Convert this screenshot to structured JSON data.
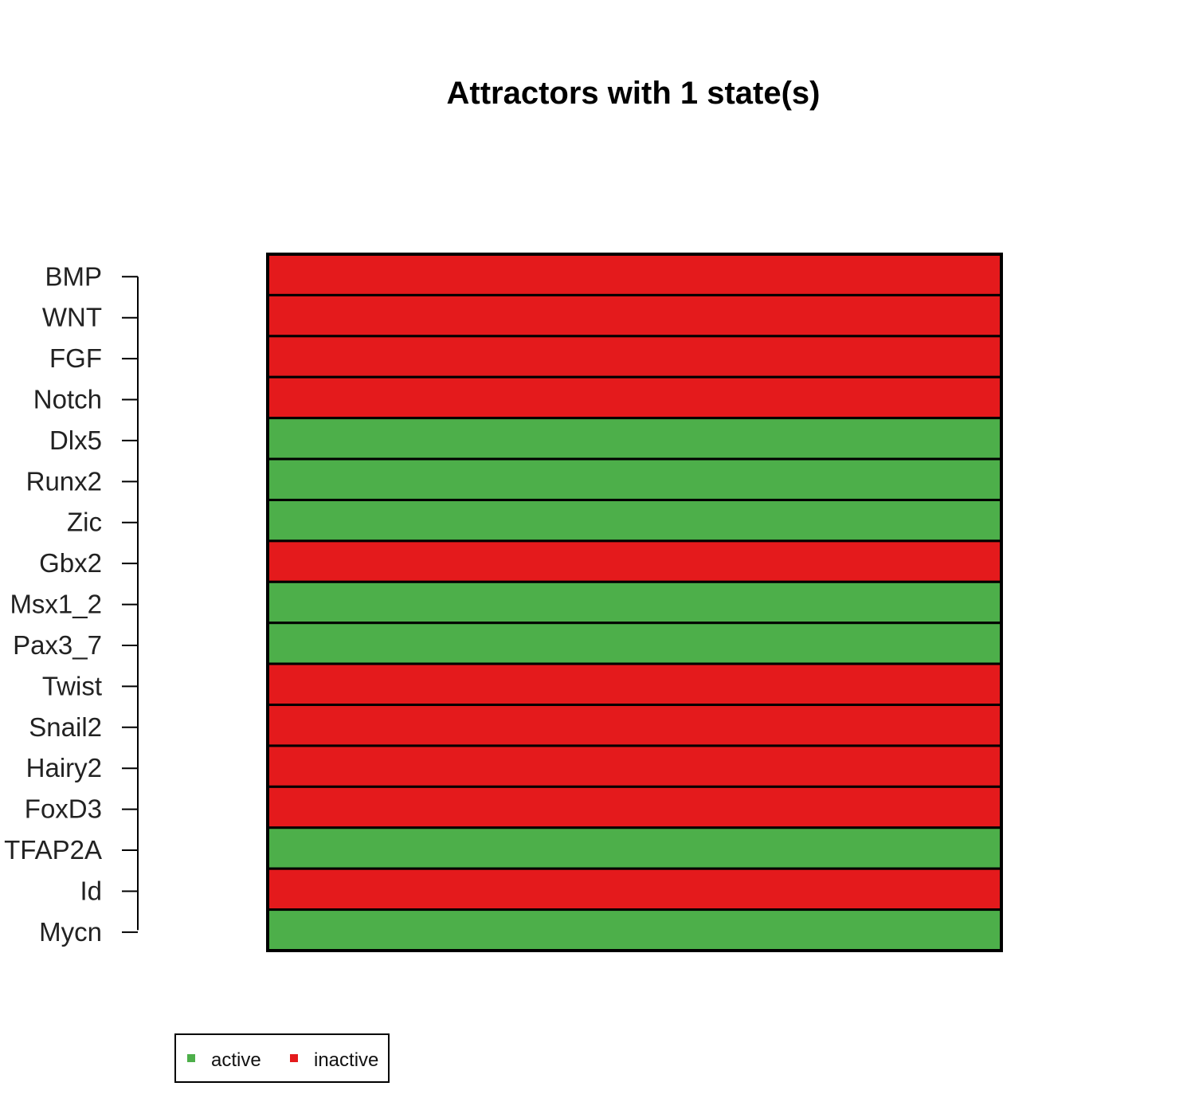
{
  "chart_data": {
    "type": "heatmap",
    "title": "Attractors with 1 state(s)",
    "xlabel": "",
    "ylabel": "",
    "genes": [
      "BMP",
      "WNT",
      "FGF",
      "Notch",
      "Dlx5",
      "Runx2",
      "Zic",
      "Gbx2",
      "Msx1_2",
      "Pax3_7",
      "Twist",
      "Snail2",
      "Hairy2",
      "FoxD3",
      "TFAP2A",
      "Id",
      "Mycn"
    ],
    "states": [
      0,
      0,
      0,
      0,
      1,
      1,
      1,
      0,
      1,
      1,
      0,
      0,
      0,
      0,
      1,
      0,
      1
    ],
    "legend": {
      "placement": "bottom-left",
      "items": [
        {
          "label": "active",
          "value": 1,
          "color": "#4daf4a"
        },
        {
          "label": "inactive",
          "value": 0,
          "color": "#e41a1c"
        }
      ]
    }
  }
}
